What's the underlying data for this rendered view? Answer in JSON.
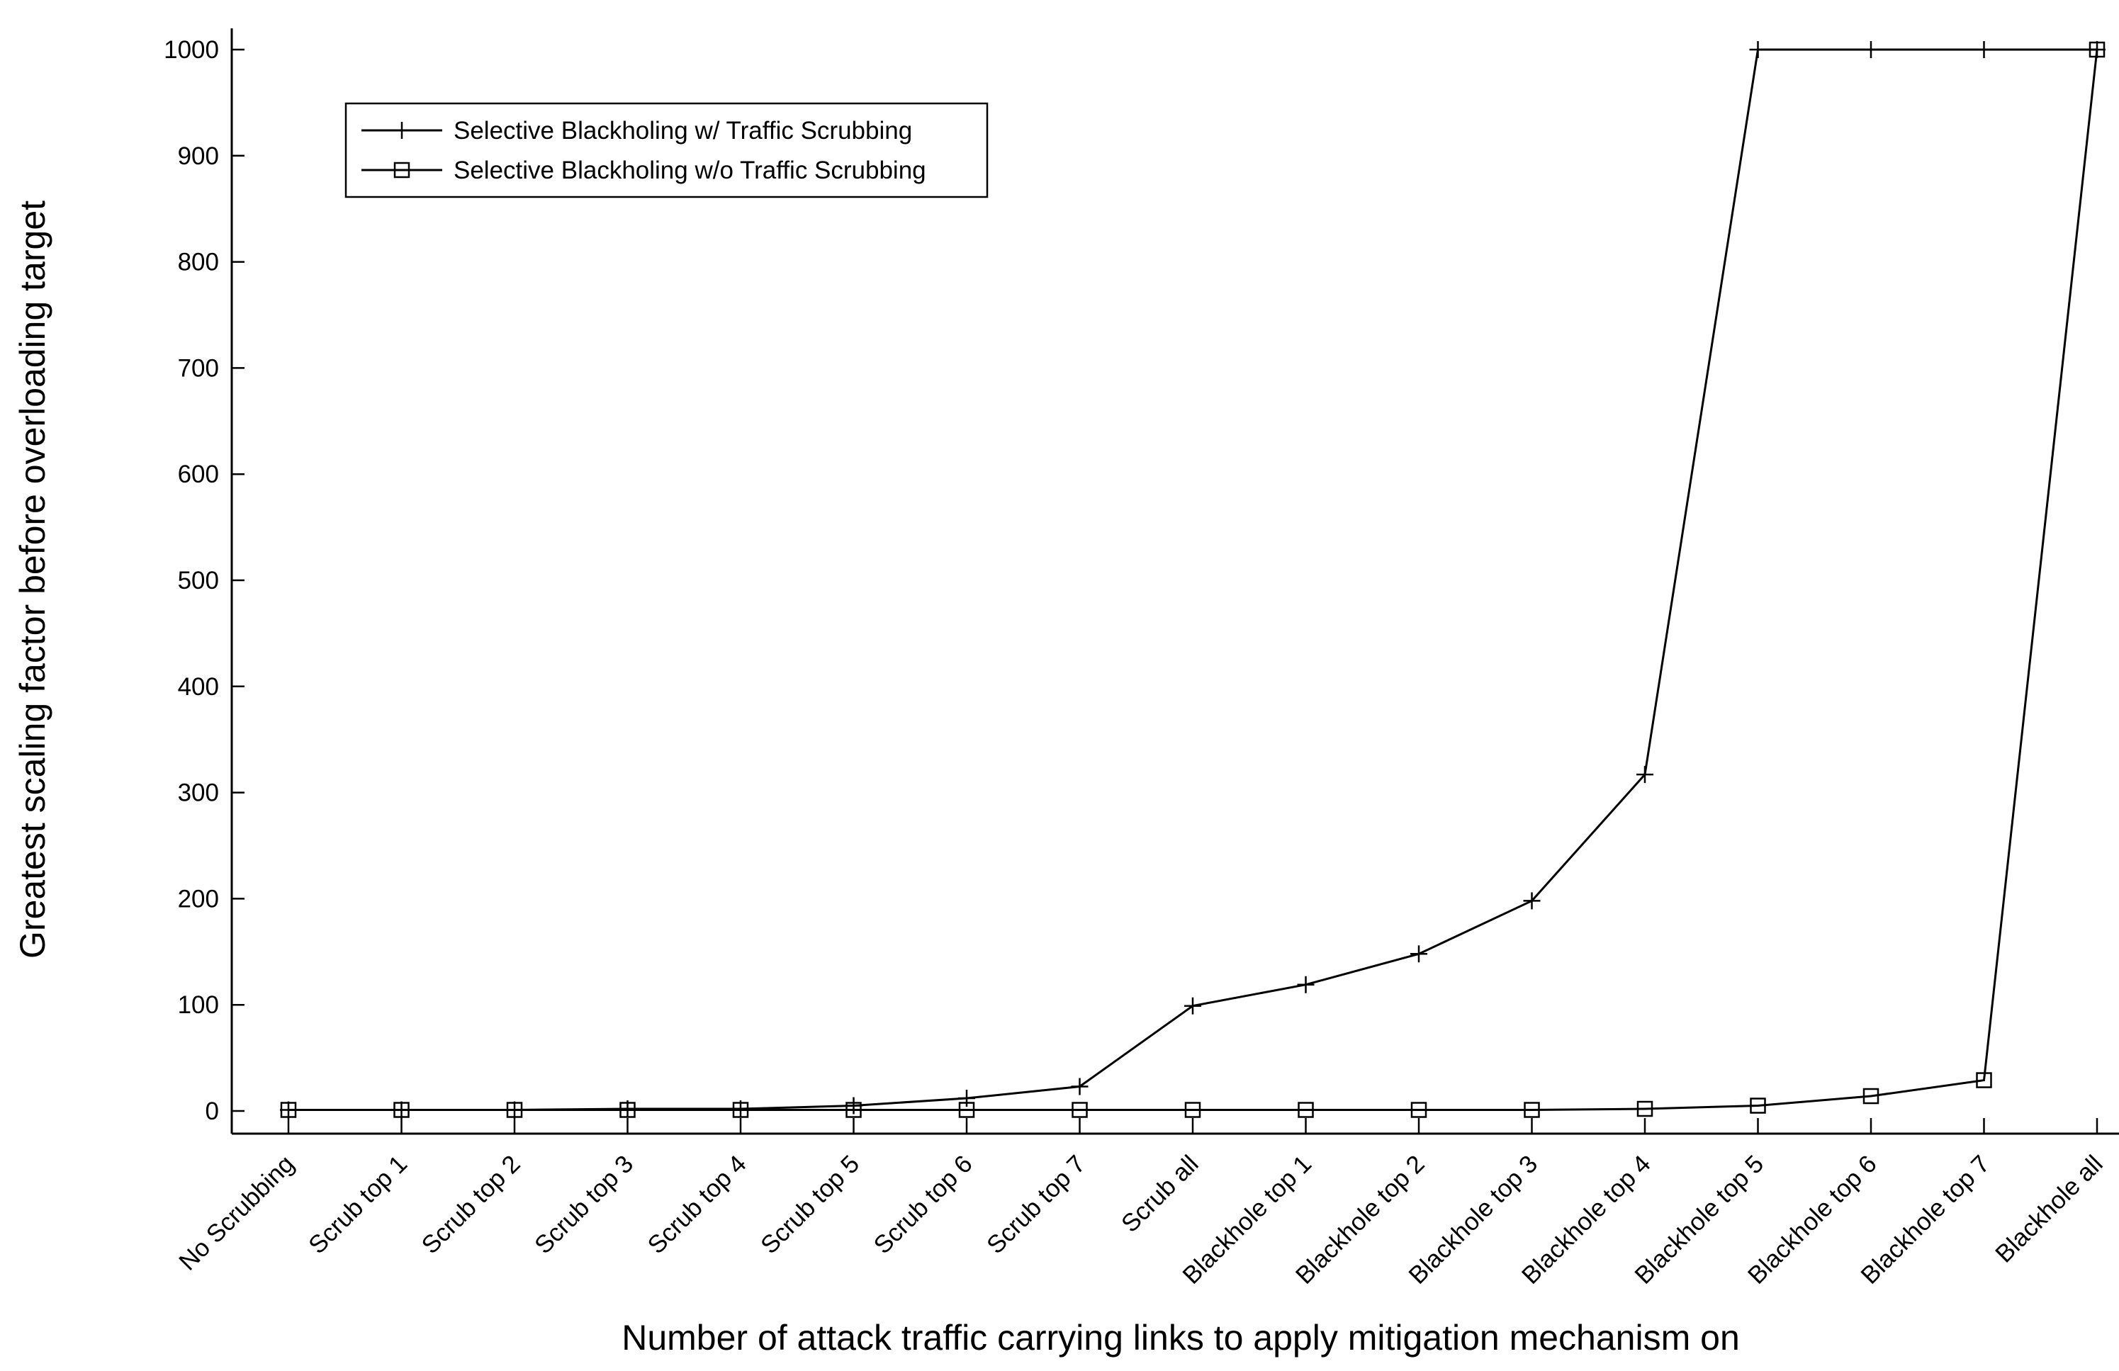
{
  "chart_data": {
    "type": "line",
    "xlabel": "Number of attack traffic carrying links to apply mitigation mechanism on",
    "ylabel": "Greatest scaling factor before overloading target",
    "categories": [
      "No Scrubbing",
      "Scrub top 1",
      "Scrub top 2",
      "Scrub top 3",
      "Scrub top 4",
      "Scrub top 5",
      "Scrub top 6",
      "Scrub top 7",
      "Scrub all",
      "Blackhole top 1",
      "Blackhole top 2",
      "Blackhole top 3",
      "Blackhole top 4",
      "Blackhole top 5",
      "Blackhole top 6",
      "Blackhole top 7",
      "Blackhole all"
    ],
    "ylim": [
      0,
      1000
    ],
    "yticks": [
      0,
      100,
      200,
      300,
      400,
      500,
      600,
      700,
      800,
      900,
      1000
    ],
    "grid": false,
    "legend_position": "top-left",
    "series": [
      {
        "name": "Selective Blackholing w/ Traffic Scrubbing",
        "marker": "plus",
        "color": "#000000",
        "values": [
          1,
          1,
          1,
          2,
          2,
          5,
          12,
          23,
          99,
          119,
          148,
          198,
          317,
          1000,
          1000,
          1000,
          1000
        ]
      },
      {
        "name": "Selective Blackholing w/o Traffic Scrubbing",
        "marker": "square",
        "color": "#000000",
        "values": [
          1,
          1,
          1,
          1,
          1,
          1,
          1,
          1,
          1,
          1,
          1,
          1,
          2,
          5,
          14,
          29,
          1000
        ]
      }
    ]
  }
}
